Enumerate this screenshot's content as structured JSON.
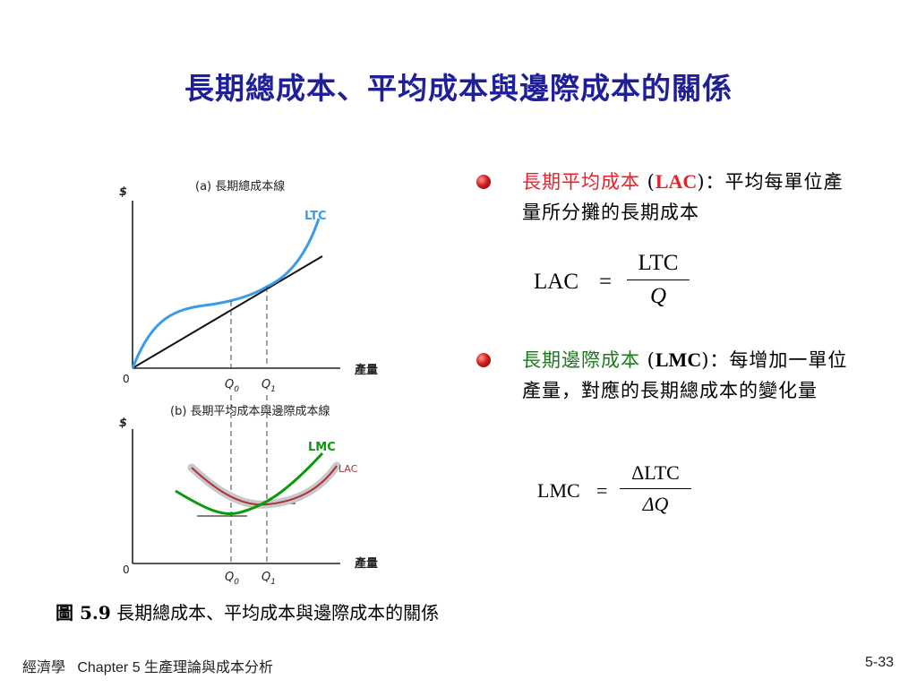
{
  "slide": {
    "title": "長期總成本、平均成本與邊際成本的關係"
  },
  "figure": {
    "panel_a": {
      "title": "(a) 長期總成本線",
      "y_axis": "$",
      "x_axis": "產量",
      "origin": "0",
      "curve_label": "LTC",
      "q0": "Q",
      "q0_sub": "0",
      "q1": "Q",
      "q1_sub": "1",
      "colors": {
        "ltc": "#3a9be8",
        "ray": "#000000"
      }
    },
    "panel_b": {
      "title": "(b) 長期平均成本與邊際成本線",
      "y_axis": "$",
      "x_axis": "產量",
      "origin": "0",
      "lmc_label": "LMC",
      "lac_label": "LAC",
      "q0": "Q",
      "q0_sub": "0",
      "q1": "Q",
      "q1_sub": "1",
      "colors": {
        "lmc": "#0a9a0a",
        "lac": "#b0303a"
      }
    }
  },
  "bullets": [
    {
      "term": "長期平均成本",
      "term_color": "#e8202a",
      "open": " (",
      "abbr": "LAC",
      "close": ")",
      "definition": "：平均每單位產量所分攤的長期成本"
    },
    {
      "term": "長期邊際成本",
      "term_color": "#1a7a1a",
      "open": " (",
      "abbr": "LMC",
      "close": ")",
      "definition": "：每增加一單位產量，對應的長期總成本的變化量"
    }
  ],
  "formulas": {
    "lac": {
      "lhs": "LAC",
      "eq": "=",
      "num": "LTC",
      "den": "Q"
    },
    "lmc": {
      "lhs": "LMC",
      "eq": "=",
      "num": "ΔLTC",
      "den": "ΔQ"
    }
  },
  "caption": {
    "label": "圖 5.9",
    "text": " 長期總成本、平均成本與邊際成本的關係"
  },
  "footer": {
    "left": "經濟學   Chapter 5 生產理論與成本分析",
    "page": "5-33"
  }
}
